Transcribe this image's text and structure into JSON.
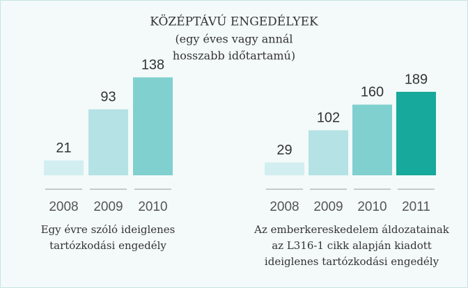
{
  "title": "KÖZÉPTÁVÚ ENGEDÉLYEK",
  "subtitle": [
    "(egy éves vagy annál",
    "hosszabb időtartamú)"
  ],
  "chart_data": [
    {
      "type": "bar",
      "categories": [
        "2008",
        "2009",
        "2010"
      ],
      "values": [
        21,
        93,
        138
      ],
      "colors": [
        "#d3eef0",
        "#b5e2e4",
        "#80d0cf"
      ],
      "caption": [
        "Egy évre szóló ideiglenes",
        "tartózkodási engedély"
      ]
    },
    {
      "type": "bar",
      "categories": [
        "2008",
        "2009",
        "2010",
        "2011"
      ],
      "values": [
        29,
        102,
        160,
        189
      ],
      "colors": [
        "#d3eef0",
        "#b5e2e4",
        "#80d0cf",
        "#17a99b"
      ],
      "caption": [
        "Az emberkereskedelem áldozatainak",
        "az L316-1 cikk alapján kiadott",
        "ideiglenes tartózkodási engedély"
      ]
    }
  ]
}
